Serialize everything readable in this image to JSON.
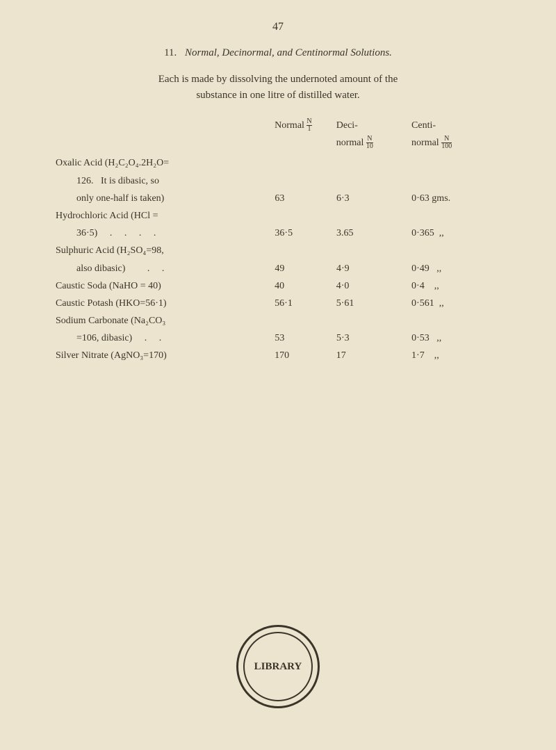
{
  "page_number": "47",
  "section": {
    "number": "11.",
    "title_italic": "Normal, Decinormal, and Centinormal Solutions."
  },
  "intro_line1": "Each is made by dissolving the undernoted amount of the",
  "intro_line2": "substance in one litre of distilled water.",
  "headers": {
    "normal": "Normal",
    "normal_frac_top": "N",
    "normal_frac_bot": "1",
    "deci_top": "Deci-",
    "deci_bot": "normal",
    "deci_frac_top": "N",
    "deci_frac_bot": "10",
    "centi_top": "Centi-",
    "centi_bot": "normal",
    "centi_frac_top": "N",
    "centi_frac_bot": "100"
  },
  "rows": [
    {
      "line1": "Oxalic Acid (H₂C₂O₄.2H₂O=",
      "line2a": "126.",
      "line2b": "It is dibasic, so",
      "line3": "only one-half is taken)",
      "normal": "63",
      "deci": "6·3",
      "centi": "0·63 gms."
    },
    {
      "line1": "Hydrochloric Acid (HCl =",
      "line2": "36·5)     .     .     .     .",
      "normal": "36·5",
      "deci": "3.65",
      "centi": "0·365  ,,"
    },
    {
      "line1": "Sulphuric Acid (H₂SO₄=98,",
      "line2": "also dibasic)         .     .",
      "normal": "49",
      "deci": "4·9",
      "centi": "0·49   ,,"
    },
    {
      "line1": "Caustic Soda (NaHO = 40)",
      "normal": "40",
      "deci": "4·0",
      "centi": "0·4    ,,"
    },
    {
      "line1": "Caustic Potash (HKO=56·1)",
      "normal": "56·1",
      "deci": "5·61",
      "centi": "0·561  ,,"
    },
    {
      "line1": "Sodium Carbonate (Na₂CO₃",
      "line2": "=106, dibasic)     .     .",
      "normal": "53",
      "deci": "5·3",
      "centi": "0·53   ,,"
    },
    {
      "line1": "Silver Nitrate (AgNO₃=170)",
      "normal": "170",
      "deci": "17",
      "centi": "1·7    ,,"
    }
  ],
  "stamp": {
    "top": "",
    "center": "LIBRARY",
    "bottom": ""
  }
}
